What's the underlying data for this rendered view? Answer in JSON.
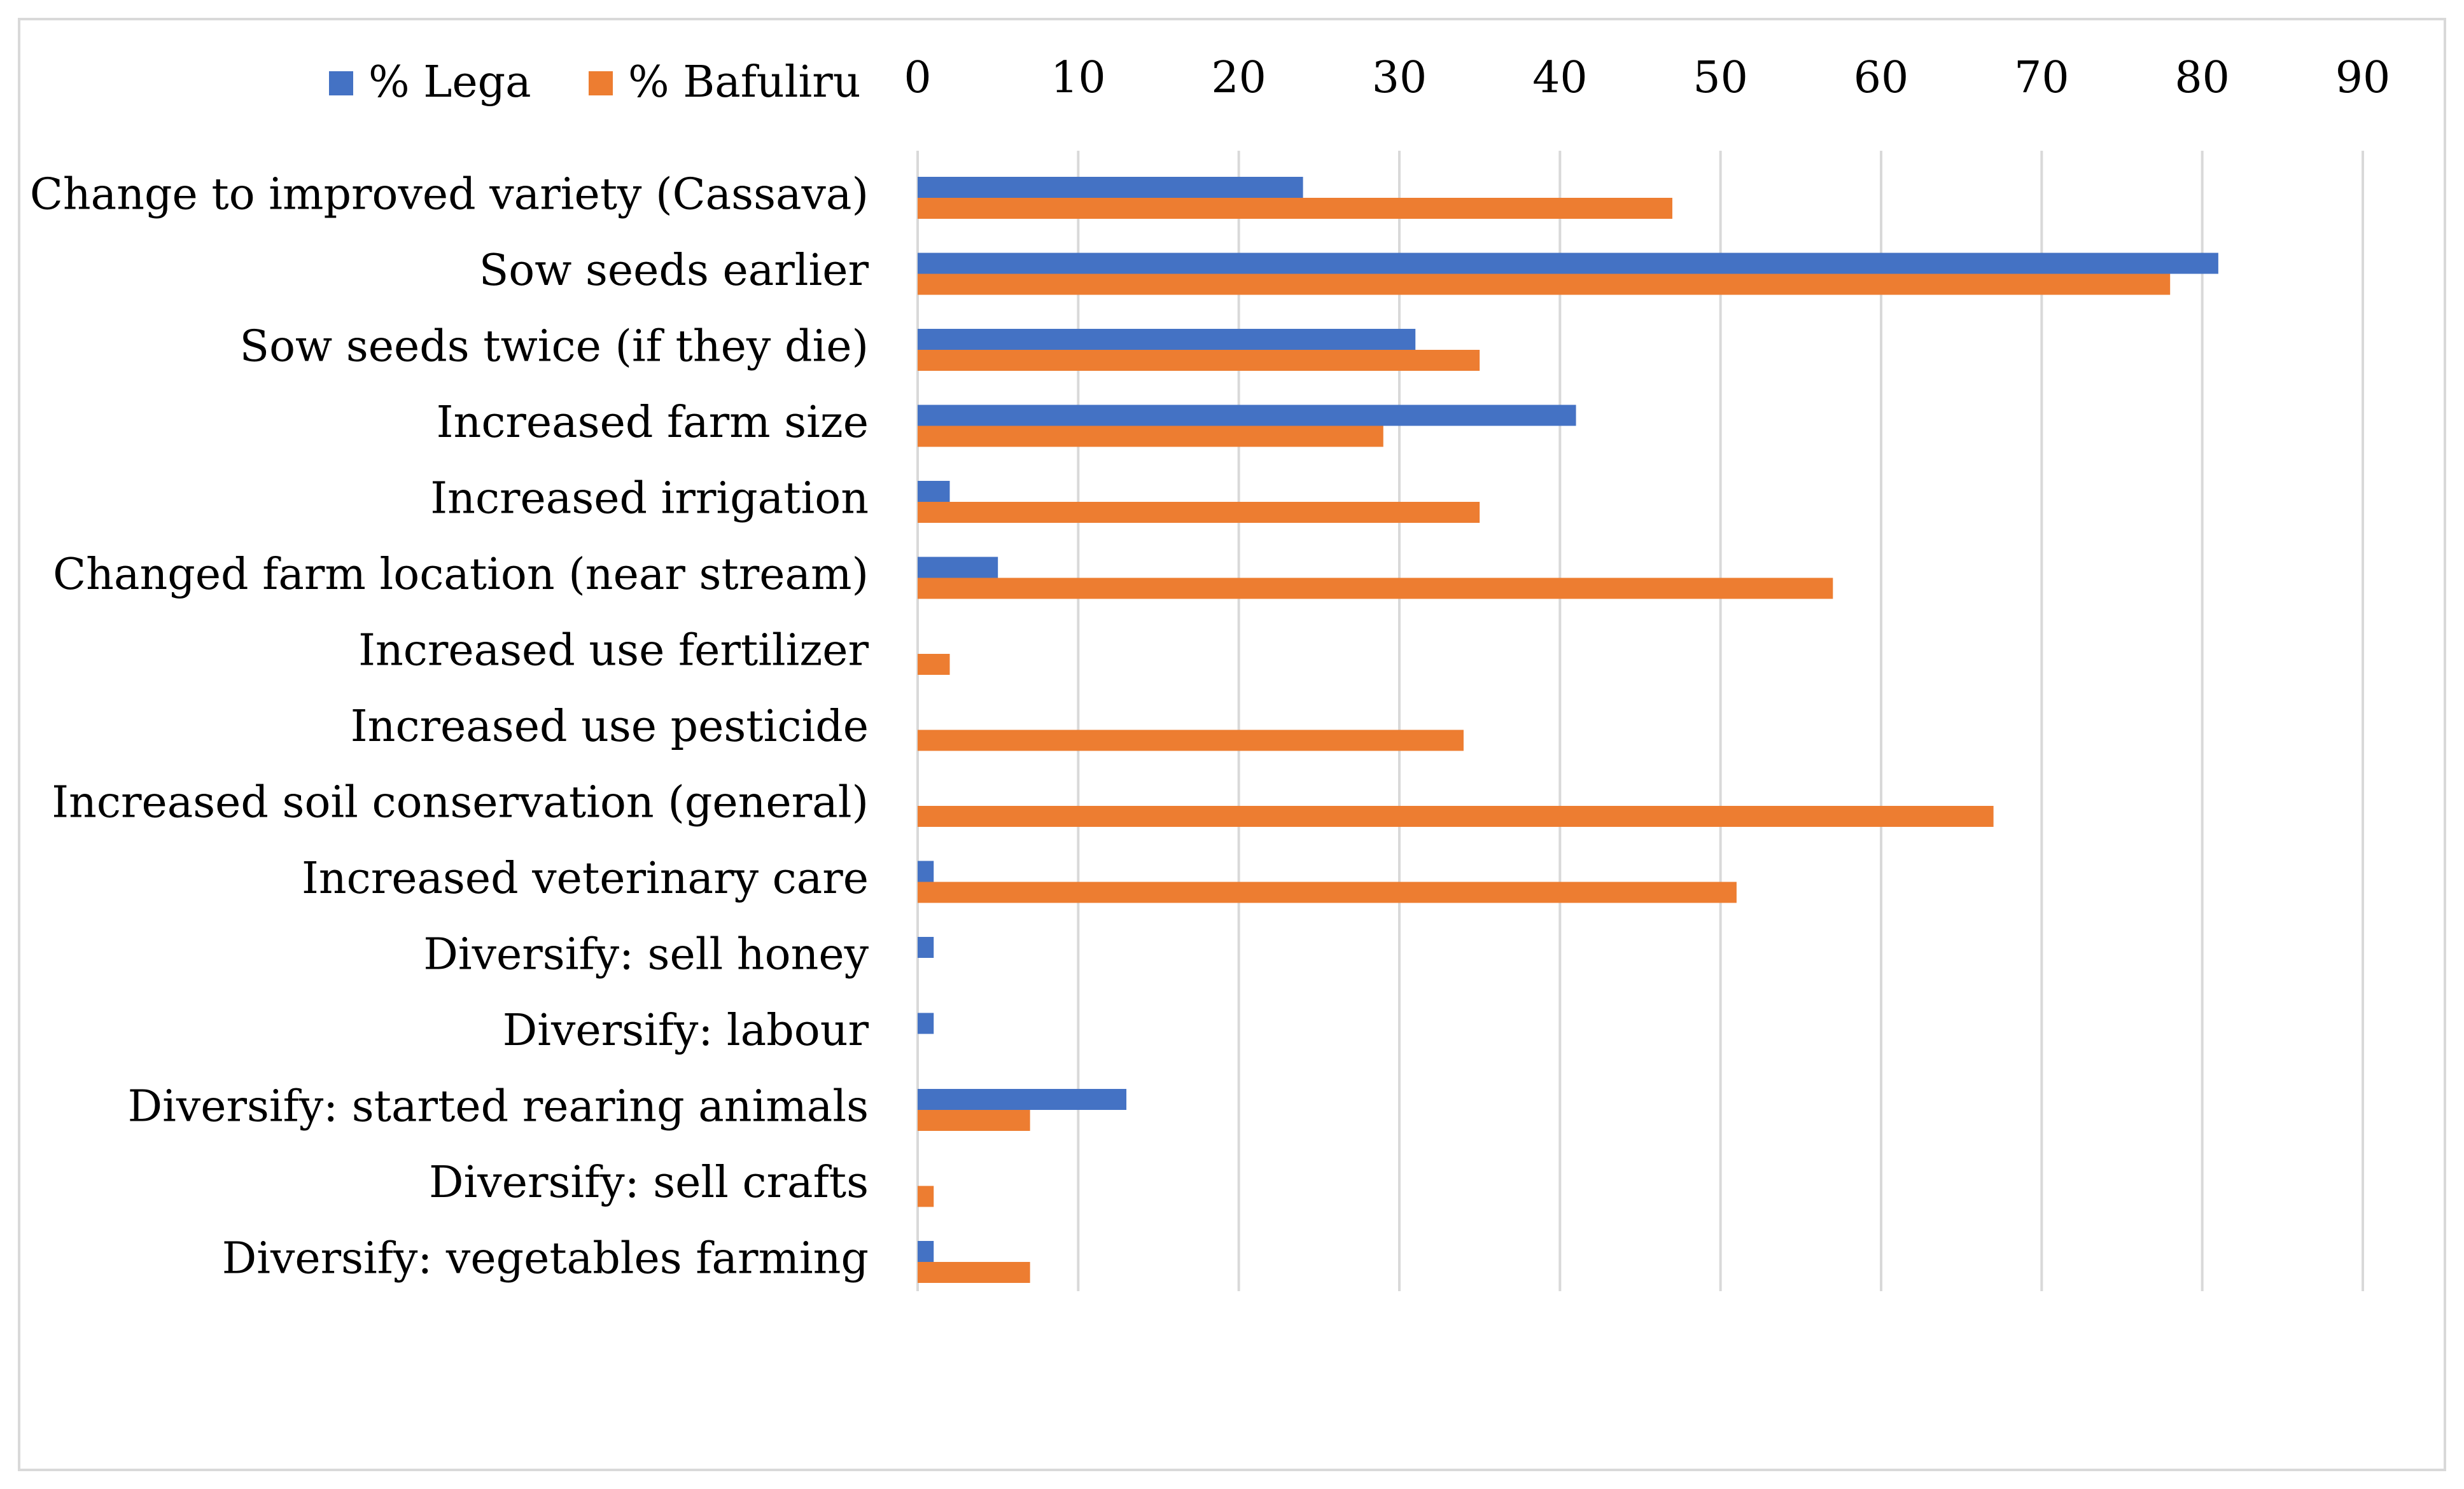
{
  "chart_data": {
    "type": "bar",
    "orientation": "horizontal",
    "title": "",
    "xlabel": "",
    "ylabel": "",
    "xlim": [
      0,
      90
    ],
    "x_ticks": [
      "0",
      "10",
      "20",
      "30",
      "40",
      "50",
      "60",
      "70",
      "80",
      "90"
    ],
    "x_axis_position": "top",
    "grid": true,
    "legend_position": "top-left",
    "categories": [
      "Change to improved variety (Cassava)",
      "Sow seeds earlier",
      "Sow seeds twice (if they die)",
      "Increased farm size",
      "Increased irrigation",
      "Changed farm location (near stream)",
      "Increased use fertilizer",
      "Increased use pesticide",
      "Increased soil conservation (general)",
      "Increased veterinary care",
      "Diversify: sell honey",
      "Diversify: labour",
      "Diversify: started rearing animals",
      "Diversify: sell crafts",
      "Diversify: vegetables farming"
    ],
    "series": [
      {
        "name": "% Lega",
        "color": "#4472c4",
        "values": [
          24,
          81,
          31,
          41,
          2,
          5,
          0,
          0,
          0,
          1,
          1,
          1,
          13,
          0,
          1
        ]
      },
      {
        "name": "% Bafuliru",
        "color": "#ed7d31",
        "values": [
          47,
          78,
          35,
          29,
          35,
          57,
          2,
          34,
          67,
          51,
          0,
          0,
          7,
          1,
          7
        ]
      }
    ]
  }
}
